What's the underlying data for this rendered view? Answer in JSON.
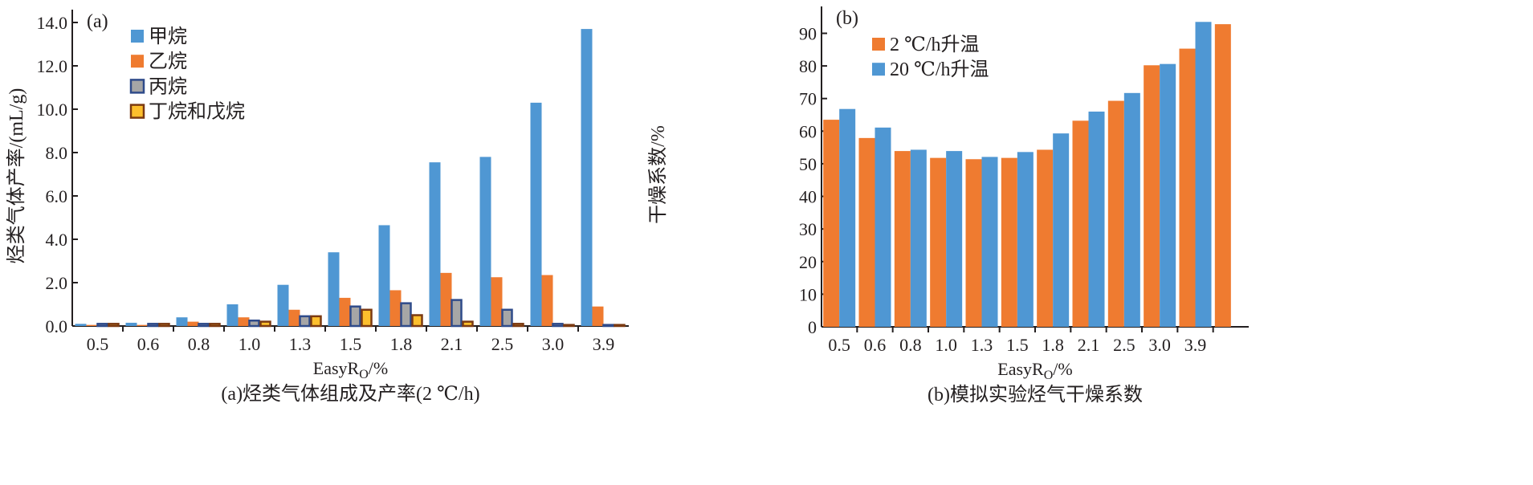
{
  "colors": {
    "methane": "#4f97d3",
    "ethane": "#ef7b30",
    "propane": "#a6a6a6",
    "propane_edge": "#2f4b8a",
    "butane": "#fdbf2d",
    "butane_edge": "#7b3a12",
    "rate2": "#ef7b30",
    "rate20": "#4f97d3"
  },
  "chart_data": [
    {
      "type": "bar",
      "panel": "(a)",
      "caption": "(a)烃类气体组成及产率(2 ℃/h)",
      "xlabel": "EasyR",
      "xlabel_sub": "O",
      "xlabel_unit": "/%",
      "ylabel": "烃类气体产率/(mL/g)",
      "ylim": [
        0,
        14
      ],
      "yticks": [
        "0.0",
        "2.0",
        "4.0",
        "6.0",
        "8.0",
        "10.0",
        "12.0",
        "14.0"
      ],
      "legend_position": "top-left",
      "categories": [
        "0.5",
        "0.6",
        "0.8",
        "1.0",
        "1.3",
        "1.5",
        "1.8",
        "2.1",
        "2.5",
        "3.0",
        "3.9"
      ],
      "series": [
        {
          "name": "甲烷",
          "values": [
            0.1,
            0.15,
            0.4,
            1.0,
            1.9,
            3.4,
            4.65,
            7.55,
            7.8,
            10.3,
            13.7
          ]
        },
        {
          "name": "乙烷",
          "values": [
            0.05,
            0.05,
            0.2,
            0.4,
            0.75,
            1.3,
            1.65,
            2.45,
            2.25,
            2.35,
            0.9
          ]
        },
        {
          "name": "丙烷",
          "values": [
            0.1,
            0.1,
            0.1,
            0.25,
            0.45,
            0.9,
            1.05,
            1.2,
            0.75,
            0.1,
            0.05
          ]
        },
        {
          "name": "丁烷和戊烷",
          "values": [
            0.1,
            0.1,
            0.1,
            0.2,
            0.45,
            0.75,
            0.5,
            0.2,
            0.1,
            0.05,
            0.05
          ]
        }
      ]
    },
    {
      "type": "bar",
      "panel": "(b)",
      "caption": "(b)模拟实验烃气干燥系数",
      "xlabel": "EasyR",
      "xlabel_sub": "O",
      "xlabel_unit": "/%",
      "ylabel": "干燥系数/%",
      "ylim": [
        0,
        98
      ],
      "yticks": [
        "0",
        "10",
        "20",
        "30",
        "40",
        "50",
        "60",
        "70",
        "80",
        "90"
      ],
      "legend_position": "top-left",
      "categories": [
        "0.5",
        "0.6",
        "0.8",
        "1.0",
        "1.3",
        "1.5",
        "1.8",
        "2.1",
        "2.5",
        "3.0",
        "3.9",
        ""
      ],
      "series": [
        {
          "name": "2 ℃/h升温",
          "values": [
            63.5,
            57.9,
            53.9,
            51.8,
            51.4,
            51.8,
            54.3,
            63.2,
            69.3,
            80.2,
            85.3,
            92.8
          ]
        },
        {
          "name": "20 ℃/h升温",
          "values": [
            66.8,
            61.1,
            54.3,
            53.9,
            52.1,
            53.6,
            59.3,
            66.0,
            71.7,
            80.6,
            93.5,
            null
          ]
        }
      ]
    }
  ]
}
